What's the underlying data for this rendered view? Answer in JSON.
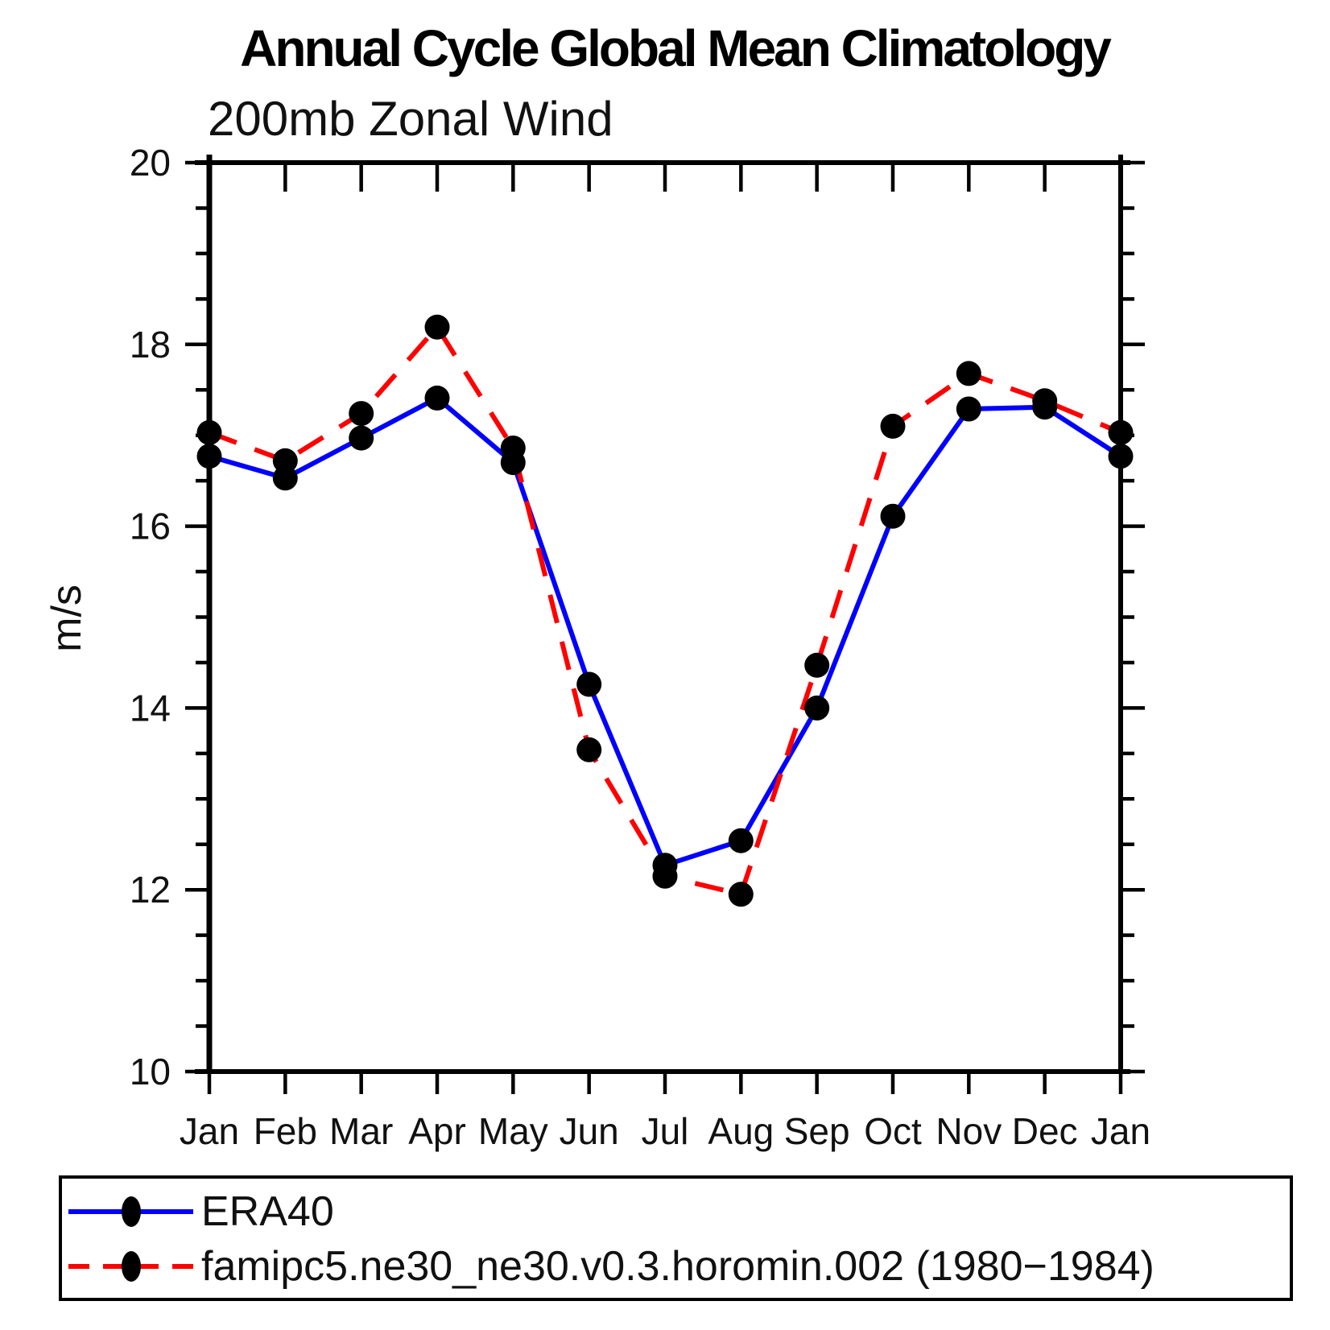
{
  "chart_data": {
    "type": "line",
    "title": "Annual Cycle Global Mean Climatology",
    "subtitle": "200mb Zonal Wind",
    "ylabel": "m/s",
    "ylim": [
      10,
      20
    ],
    "ytick_major_step": 2,
    "ytick_minor_step": 0.5,
    "grid": false,
    "legend_position": "bottom-box",
    "categories": [
      "Jan",
      "Feb",
      "Mar",
      "Apr",
      "May",
      "Jun",
      "Jul",
      "Aug",
      "Sep",
      "Oct",
      "Nov",
      "Dec",
      "Jan"
    ],
    "series": [
      {
        "name": "ERA40",
        "color": "#0000ff",
        "line_style": "solid",
        "marker": "circle",
        "marker_color": "#000000",
        "values": [
          16.77,
          16.53,
          16.97,
          17.41,
          16.7,
          14.26,
          12.27,
          12.54,
          14.0,
          16.11,
          17.29,
          17.31,
          16.77
        ]
      },
      {
        "name": "famipc5.ne30_ne30.v0.3.horomin.002 (1980−1984)",
        "color": "#ff0000",
        "line_style": "dashed",
        "marker": "circle",
        "marker_color": "#000000",
        "values": [
          17.03,
          16.72,
          17.24,
          18.19,
          16.86,
          13.54,
          12.15,
          11.95,
          14.47,
          17.1,
          17.68,
          17.38,
          17.03
        ]
      }
    ]
  }
}
